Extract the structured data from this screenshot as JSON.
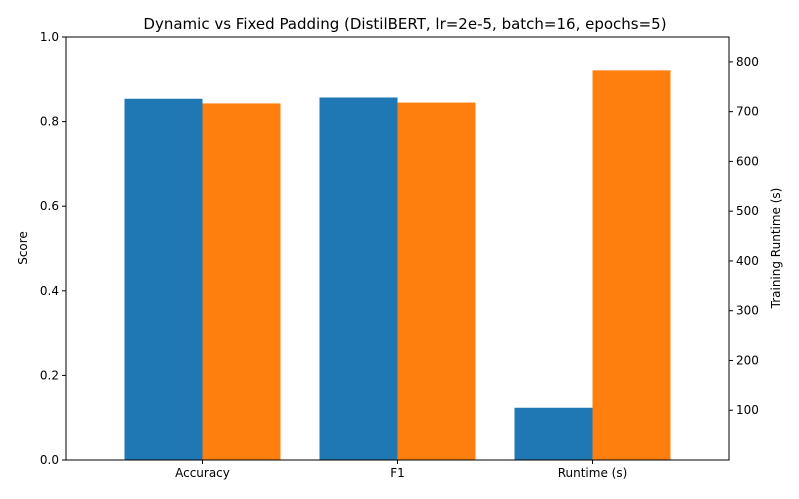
{
  "chart_data": {
    "type": "bar",
    "title": "Dynamic vs Fixed Padding (DistilBERT, lr=2e-5, batch=16, epochs=5)",
    "categories": [
      "Accuracy",
      "F1",
      "Runtime (s)"
    ],
    "xlabel": "",
    "ylabel": "Score",
    "ylabel_right": "Training Runtime (s)",
    "ylim": [
      0,
      1
    ],
    "ylim_right": [
      0,
      850
    ],
    "yticks": [
      "0.0",
      "0.2",
      "0.4",
      "0.6",
      "0.8",
      "1.0"
    ],
    "yticks_right": [
      "100",
      "200",
      "300",
      "400",
      "500",
      "600",
      "700",
      "800"
    ],
    "series": [
      {
        "color": "#1f77b4",
        "values": [
          0.854,
          0.857,
          null
        ],
        "values_right": [
          null,
          null,
          105
        ]
      },
      {
        "color": "#ff7f0e",
        "values": [
          0.843,
          0.845,
          null
        ],
        "values_right": [
          null,
          null,
          783
        ]
      }
    ],
    "grid": false,
    "legend": "none"
  }
}
